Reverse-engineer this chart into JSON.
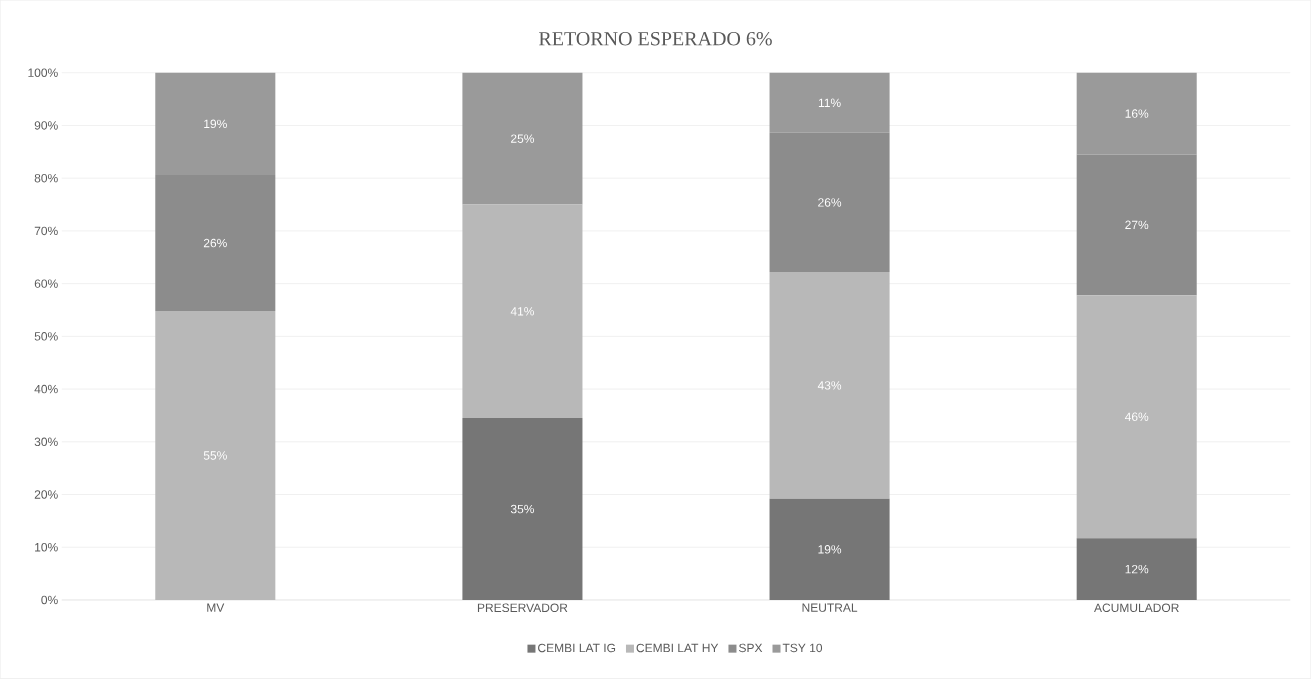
{
  "chart_data": {
    "type": "bar",
    "stacked": true,
    "title": "RETORNO ESPERADO 6%",
    "categories": [
      "MV",
      "PRESERVADOR",
      "NEUTRAL",
      "ACUMULADOR"
    ],
    "series": [
      {
        "name": "CEMBI LAT IG",
        "color": "#767676",
        "values": [
          0,
          34.5,
          19.2,
          11.7
        ],
        "value_labels": [
          null,
          "35%",
          "19%",
          "12%"
        ]
      },
      {
        "name": "CEMBI LAT HY",
        "color": "#b8b8b8",
        "values": [
          54.8,
          40.5,
          43,
          46.1
        ],
        "value_labels": [
          "55%",
          "41%",
          "43%",
          "46%"
        ]
      },
      {
        "name": "SPX",
        "color": "#8c8c8c",
        "values": [
          25.8,
          0,
          26.4,
          26.7
        ],
        "value_labels": [
          "26%",
          null,
          "26%",
          "27%"
        ]
      },
      {
        "name": "TSY 10",
        "color": "#9a9a9a",
        "values": [
          19.4,
          25,
          11.4,
          15.5
        ],
        "value_labels": [
          "19%",
          "25%",
          "11%",
          "16%"
        ]
      }
    ],
    "ylim": [
      0,
      100
    ],
    "yticks": [
      {
        "value": 0,
        "label": "0%"
      },
      {
        "value": 10,
        "label": "10%"
      },
      {
        "value": 20,
        "label": "20%"
      },
      {
        "value": 30,
        "label": "30%"
      },
      {
        "value": 40,
        "label": "40%"
      },
      {
        "value": 50,
        "label": "50%"
      },
      {
        "value": 60,
        "label": "60%"
      },
      {
        "value": 70,
        "label": "70%"
      },
      {
        "value": 80,
        "label": "80%"
      },
      {
        "value": 90,
        "label": "90%"
      },
      {
        "value": 100,
        "label": "100%"
      }
    ],
    "grid": "y",
    "legend": "bottom"
  }
}
